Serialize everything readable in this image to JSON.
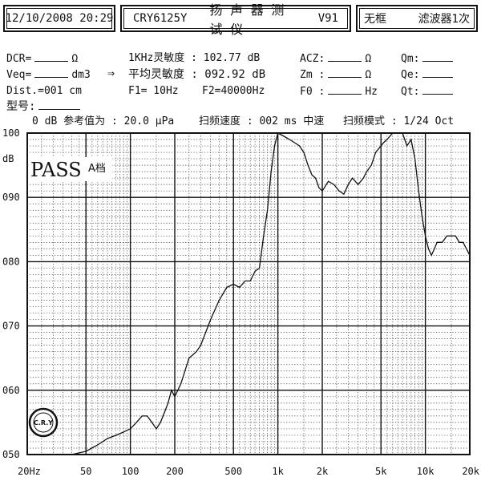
{
  "header": {
    "datetime": "12/10/2008 20:29",
    "model": "CRY6125Y",
    "device_name": "扬 声 器 测 试 仪",
    "version": "V91",
    "frame_status": "无框",
    "filter_status": "滤波器1次"
  },
  "params": {
    "dcr_label": "DCR=",
    "dcr_unit": "Ω",
    "veq_label": "Veq=",
    "veq_unit": "dm3",
    "arrow": "⇒",
    "dist_label": "Dist.=001 cm",
    "model_label": "型号:",
    "sens_1k": "1KHz灵敏度 : 102.77 dB",
    "sens_avg": "平均灵敏度 : 092.92 dB",
    "f1": "F1=   10Hz",
    "f2": "F2=40000Hz",
    "acz_label": "ACZ:",
    "acz_unit": "Ω",
    "zm_label": "Zm :",
    "zm_unit": "Ω",
    "f0_label": "F0 :",
    "f0_unit": "Hz",
    "qm_label": "Qm:",
    "qe_label": "Qe:",
    "qt_label": "Qt:",
    "ref_line": "0 dB 参考值为 : 20.0 μPa",
    "sweep_speed": "扫频速度 : 002 ms 中速",
    "sweep_mode": "扫频模式 : 1/24 Oct"
  },
  "chart_data": {
    "type": "line",
    "x_scale": "log",
    "xlim": [
      20,
      20000
    ],
    "ylim": [
      50,
      100
    ],
    "ylabel": "dB",
    "y_ticks": [
      50,
      60,
      70,
      80,
      90,
      100
    ],
    "y_tick_labels": [
      "050",
      "060",
      "070",
      "080",
      "090",
      "100"
    ],
    "x_ticks": [
      20,
      50,
      100,
      200,
      500,
      1000,
      2000,
      5000,
      10000,
      20000
    ],
    "x_tick_labels": [
      "20Hz",
      "50",
      "100",
      "200",
      "500",
      "1k",
      "2k",
      "5k",
      "10k",
      "20k"
    ],
    "grid": true,
    "annotation": "PASS",
    "annotation_sub": "A档",
    "logo_text": "C.R.Y",
    "series": [
      {
        "x": [
          20,
          30,
          40,
          50,
          60,
          70,
          80,
          90,
          100,
          110,
          120,
          130,
          140,
          150,
          160,
          170,
          180,
          190,
          200,
          220,
          250,
          280,
          300,
          350,
          400,
          450,
          500,
          550,
          600,
          650,
          700,
          750,
          800,
          850,
          900,
          950,
          1000,
          1100,
          1200,
          1300,
          1400,
          1500,
          1600,
          1700,
          1800,
          1900,
          2000,
          2200,
          2400,
          2600,
          2800,
          3000,
          3200,
          3500,
          3800,
          4000,
          4300,
          4600,
          5000,
          5200,
          5500,
          6000,
          6500,
          7000,
          7500,
          8000,
          8500,
          9000,
          9500,
          10000,
          10500,
          11000,
          11500,
          12000,
          13000,
          14000,
          15000,
          16000,
          17000,
          18000,
          19000,
          20000
        ],
        "y": [
          50,
          50,
          50,
          50.5,
          51.5,
          52.5,
          53,
          53.5,
          54,
          55,
          56,
          56,
          55,
          54,
          55,
          56.5,
          58,
          60,
          59,
          61,
          65,
          66,
          67,
          71,
          74,
          76,
          76.5,
          76,
          77,
          77,
          78.5,
          79,
          84,
          88,
          94,
          98,
          100,
          99.5,
          99,
          98.5,
          98,
          97,
          95,
          93.5,
          93,
          91.5,
          91,
          92.5,
          92,
          91,
          90.5,
          92,
          93,
          92,
          93,
          94,
          95,
          97,
          98,
          98.5,
          99,
          100,
          100,
          100,
          98,
          99,
          96,
          91,
          87,
          84,
          82,
          81,
          82,
          83,
          83,
          84,
          84,
          84,
          83,
          83,
          82,
          81
        ]
      }
    ]
  }
}
